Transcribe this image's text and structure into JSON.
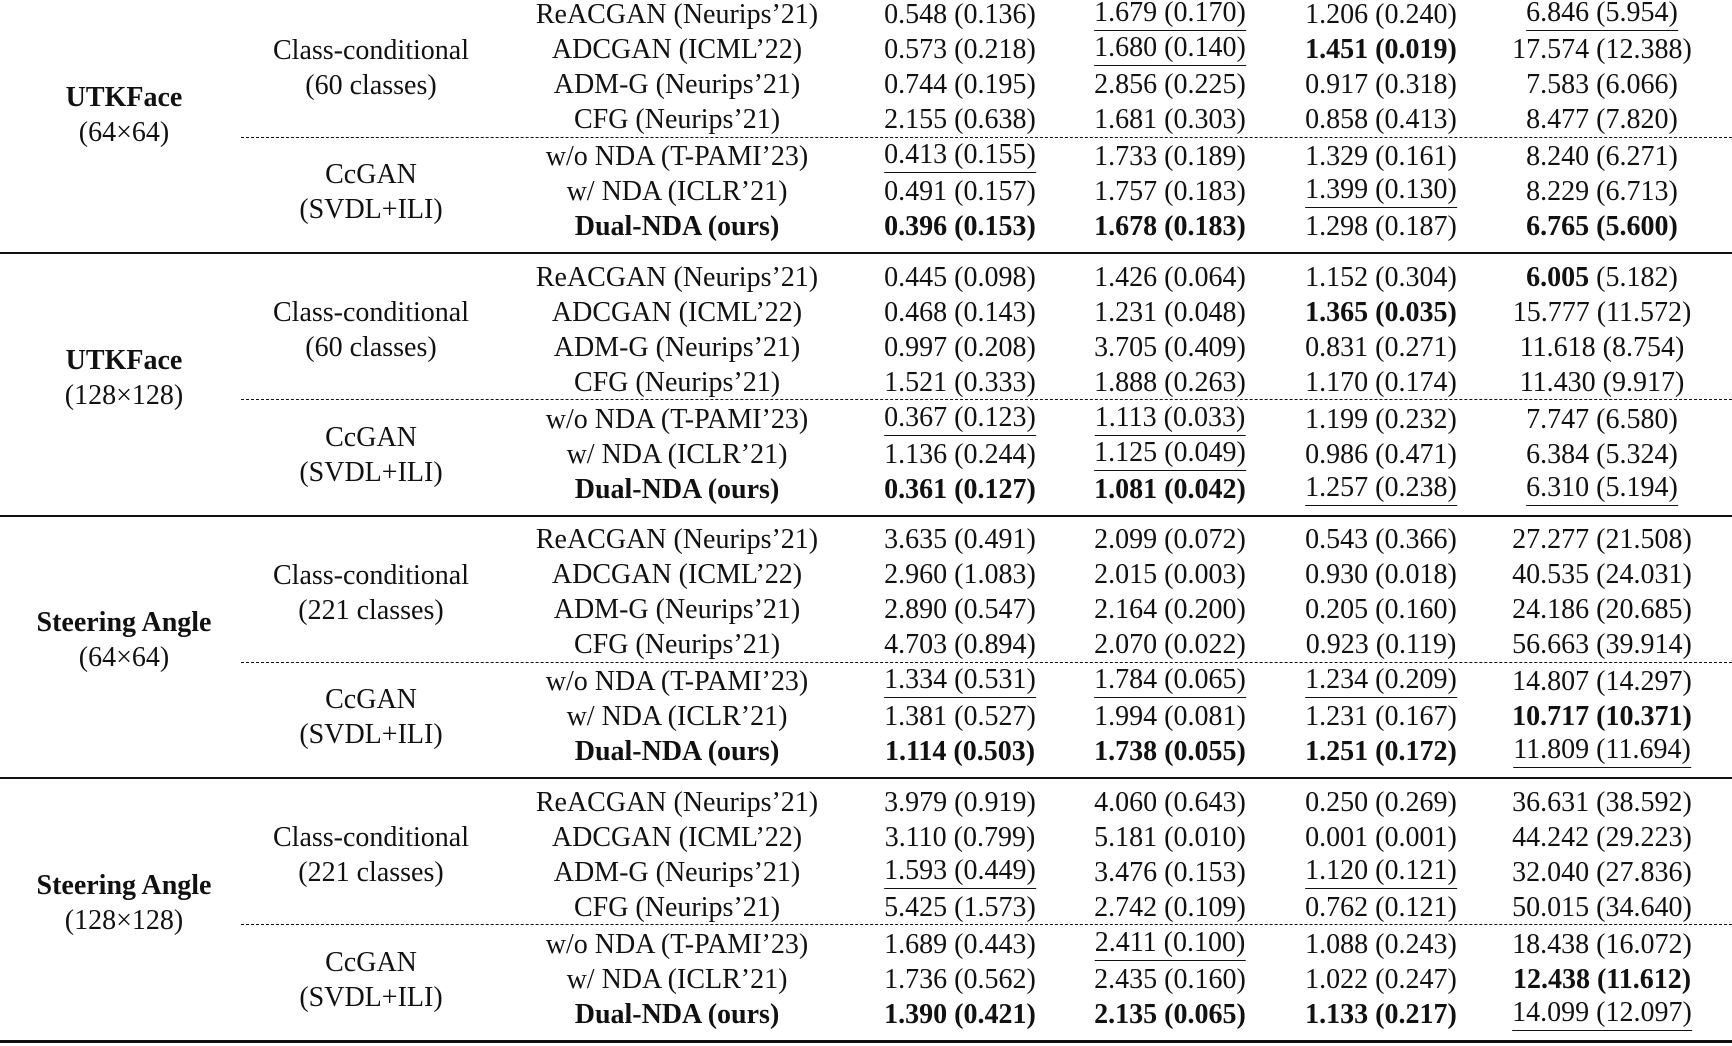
{
  "blocks": [
    {
      "dataset": "UTKFace",
      "resolution": "(64×64)",
      "groups": [
        {
          "label": [
            "Class-conditional",
            "(60 classes)"
          ],
          "rows": [
            {
              "method": "ReACGAN (Neurips’21)",
              "cells": [
                [
                  "0.548",
                  "(0.136)"
                ],
                [
                  "1.679",
                  "(0.170)"
                ],
                [
                  "1.206",
                  "(0.240)"
                ],
                [
                  "6.846",
                  "(5.954)"
                ]
              ]
            },
            {
              "method": "ADCGAN (ICML’22)",
              "cells": [
                [
                  "0.573",
                  "(0.218)"
                ],
                [
                  "1.680",
                  "(0.140)"
                ],
                [
                  "1.451",
                  "(0.019)"
                ],
                [
                  "17.574",
                  "(12.388)"
                ]
              ]
            },
            {
              "method": "ADM-G (Neurips’21)",
              "cells": [
                [
                  "0.744",
                  "(0.195)"
                ],
                [
                  "2.856",
                  "(0.225)"
                ],
                [
                  "0.917",
                  "(0.318)"
                ],
                [
                  "7.583",
                  "(6.066)"
                ]
              ]
            },
            {
              "method": "CFG (Neurips’21)",
              "cells": [
                [
                  "2.155",
                  "(0.638)"
                ],
                [
                  "1.681",
                  "(0.303)"
                ],
                [
                  "0.858",
                  "(0.413)"
                ],
                [
                  "8.477",
                  "(7.820)"
                ]
              ]
            }
          ]
        },
        {
          "label": [
            "CcGAN",
            "(SVDL+ILI)"
          ],
          "rows": [
            {
              "method": "w/o NDA (T-PAMI’23)",
              "cells": [
                [
                  "0.413",
                  "(0.155)"
                ],
                [
                  "1.733",
                  "(0.189)"
                ],
                [
                  "1.329",
                  "(0.161)"
                ],
                [
                  "8.240",
                  "(6.271)"
                ]
              ]
            },
            {
              "method": "w/ NDA (ICLR’21)",
              "cells": [
                [
                  "0.491",
                  "(0.157)"
                ],
                [
                  "1.757",
                  "(0.183)"
                ],
                [
                  "1.399",
                  "(0.130)"
                ],
                [
                  "8.229",
                  "(6.713)"
                ]
              ]
            },
            {
              "method": "Dual-NDA (ours)",
              "cells": [
                [
                  "0.396",
                  "(0.153)"
                ],
                [
                  "1.678",
                  "(0.183)"
                ],
                [
                  "1.298",
                  "(0.187)"
                ],
                [
                  "6.765",
                  "(5.600)"
                ]
              ]
            }
          ]
        }
      ]
    },
    {
      "dataset": "UTKFace",
      "resolution": "(128×128)",
      "groups": [
        {
          "label": [
            "Class-conditional",
            "(60 classes)"
          ],
          "rows": [
            {
              "method": "ReACGAN (Neurips’21)",
              "cells": [
                [
                  "0.445",
                  "(0.098)"
                ],
                [
                  "1.426",
                  "(0.064)"
                ],
                [
                  "1.152",
                  "(0.304)"
                ],
                [
                  "6.005",
                  "(5.182)"
                ]
              ]
            },
            {
              "method": "ADCGAN (ICML’22)",
              "cells": [
                [
                  "0.468",
                  "(0.143)"
                ],
                [
                  "1.231",
                  "(0.048)"
                ],
                [
                  "1.365",
                  "(0.035)"
                ],
                [
                  "15.777",
                  "(11.572)"
                ]
              ]
            },
            {
              "method": "ADM-G (Neurips’21)",
              "cells": [
                [
                  "0.997",
                  "(0.208)"
                ],
                [
                  "3.705",
                  "(0.409)"
                ],
                [
                  "0.831",
                  "(0.271)"
                ],
                [
                  "11.618",
                  "(8.754)"
                ]
              ]
            },
            {
              "method": "CFG (Neurips’21)",
              "cells": [
                [
                  "1.521",
                  "(0.333)"
                ],
                [
                  "1.888",
                  "(0.263)"
                ],
                [
                  "1.170",
                  "(0.174)"
                ],
                [
                  "11.430",
                  "(9.917)"
                ]
              ]
            }
          ]
        },
        {
          "label": [
            "CcGAN",
            "(SVDL+ILI)"
          ],
          "rows": [
            {
              "method": "w/o NDA (T-PAMI’23)",
              "cells": [
                [
                  "0.367",
                  "(0.123)"
                ],
                [
                  "1.113",
                  "(0.033)"
                ],
                [
                  "1.199",
                  "(0.232)"
                ],
                [
                  "7.747",
                  "(6.580)"
                ]
              ]
            },
            {
              "method": "w/ NDA (ICLR’21)",
              "cells": [
                [
                  "1.136",
                  "(0.244)"
                ],
                [
                  "1.125",
                  "(0.049)"
                ],
                [
                  "0.986",
                  "(0.471)"
                ],
                [
                  "6.384",
                  "(5.324)"
                ]
              ]
            },
            {
              "method": "Dual-NDA (ours)",
              "cells": [
                [
                  "0.361",
                  "(0.127)"
                ],
                [
                  "1.081",
                  "(0.042)"
                ],
                [
                  "1.257",
                  "(0.238)"
                ],
                [
                  "6.310",
                  "(5.194)"
                ]
              ]
            }
          ]
        }
      ]
    },
    {
      "dataset": "Steering Angle",
      "resolution": "(64×64)",
      "groups": [
        {
          "label": [
            "Class-conditional",
            "(221 classes)"
          ],
          "rows": [
            {
              "method": "ReACGAN (Neurips’21)",
              "cells": [
                [
                  "3.635",
                  "(0.491)"
                ],
                [
                  "2.099",
                  "(0.072)"
                ],
                [
                  "0.543",
                  "(0.366)"
                ],
                [
                  "27.277",
                  "(21.508)"
                ]
              ]
            },
            {
              "method": "ADCGAN (ICML’22)",
              "cells": [
                [
                  "2.960",
                  "(1.083)"
                ],
                [
                  "2.015",
                  "(0.003)"
                ],
                [
                  "0.930",
                  "(0.018)"
                ],
                [
                  "40.535",
                  "(24.031)"
                ]
              ]
            },
            {
              "method": "ADM-G (Neurips’21)",
              "cells": [
                [
                  "2.890",
                  "(0.547)"
                ],
                [
                  "2.164",
                  "(0.200)"
                ],
                [
                  "0.205",
                  "(0.160)"
                ],
                [
                  "24.186",
                  "(20.685)"
                ]
              ]
            },
            {
              "method": "CFG (Neurips’21)",
              "cells": [
                [
                  "4.703",
                  "(0.894)"
                ],
                [
                  "2.070",
                  "(0.022)"
                ],
                [
                  "0.923",
                  "(0.119)"
                ],
                [
                  "56.663",
                  "(39.914)"
                ]
              ]
            }
          ]
        },
        {
          "label": [
            "CcGAN",
            "(SVDL+ILI)"
          ],
          "rows": [
            {
              "method": "w/o NDA (T-PAMI’23)",
              "cells": [
                [
                  "1.334",
                  "(0.531)"
                ],
                [
                  "1.784",
                  "(0.065)"
                ],
                [
                  "1.234",
                  "(0.209)"
                ],
                [
                  "14.807",
                  "(14.297)"
                ]
              ]
            },
            {
              "method": "w/ NDA (ICLR’21)",
              "cells": [
                [
                  "1.381",
                  "(0.527)"
                ],
                [
                  "1.994",
                  "(0.081)"
                ],
                [
                  "1.231",
                  "(0.167)"
                ],
                [
                  "10.717",
                  "(10.371)"
                ]
              ]
            },
            {
              "method": "Dual-NDA (ours)",
              "cells": [
                [
                  "1.114",
                  "(0.503)"
                ],
                [
                  "1.738",
                  "(0.055)"
                ],
                [
                  "1.251",
                  "(0.172)"
                ],
                [
                  "11.809",
                  "(11.694)"
                ]
              ]
            }
          ]
        }
      ]
    },
    {
      "dataset": "Steering Angle",
      "resolution": "(128×128)",
      "groups": [
        {
          "label": [
            "Class-conditional",
            "(221 classes)"
          ],
          "rows": [
            {
              "method": "ReACGAN (Neurips’21)",
              "cells": [
                [
                  "3.979",
                  "(0.919)"
                ],
                [
                  "4.060",
                  "(0.643)"
                ],
                [
                  "0.250",
                  "(0.269)"
                ],
                [
                  "36.631",
                  "(38.592)"
                ]
              ]
            },
            {
              "method": "ADCGAN (ICML’22)",
              "cells": [
                [
                  "3.110",
                  "(0.799)"
                ],
                [
                  "5.181",
                  "(0.010)"
                ],
                [
                  "0.001",
                  "(0.001)"
                ],
                [
                  "44.242",
                  "(29.223)"
                ]
              ]
            },
            {
              "method": "ADM-G (Neurips’21)",
              "cells": [
                [
                  "1.593",
                  "(0.449)"
                ],
                [
                  "3.476",
                  "(0.153)"
                ],
                [
                  "1.120",
                  "(0.121)"
                ],
                [
                  "32.040",
                  "(27.836)"
                ]
              ]
            },
            {
              "method": "CFG (Neurips’21)",
              "cells": [
                [
                  "5.425",
                  "(1.573)"
                ],
                [
                  "2.742",
                  "(0.109)"
                ],
                [
                  "0.762",
                  "(0.121)"
                ],
                [
                  "50.015",
                  "(34.640)"
                ]
              ]
            }
          ]
        },
        {
          "label": [
            "CcGAN",
            "(SVDL+ILI)"
          ],
          "rows": [
            {
              "method": "w/o NDA (T-PAMI’23)",
              "cells": [
                [
                  "1.689",
                  "(0.443)"
                ],
                [
                  "2.411",
                  "(0.100)"
                ],
                [
                  "1.088",
                  "(0.243)"
                ],
                [
                  "18.438",
                  "(16.072)"
                ]
              ]
            },
            {
              "method": "w/ NDA (ICLR’21)",
              "cells": [
                [
                  "1.736",
                  "(0.562)"
                ],
                [
                  "2.435",
                  "(0.160)"
                ],
                [
                  "1.022",
                  "(0.247)"
                ],
                [
                  "12.438",
                  "(11.612)"
                ]
              ]
            },
            {
              "method": "Dual-NDA (ours)",
              "cells": [
                [
                  "1.390",
                  "(0.421)"
                ],
                [
                  "2.135",
                  "(0.065)"
                ],
                [
                  "1.133",
                  "(0.217)"
                ],
                [
                  "14.099",
                  "(12.097)"
                ]
              ]
            }
          ]
        }
      ]
    }
  ]
}
